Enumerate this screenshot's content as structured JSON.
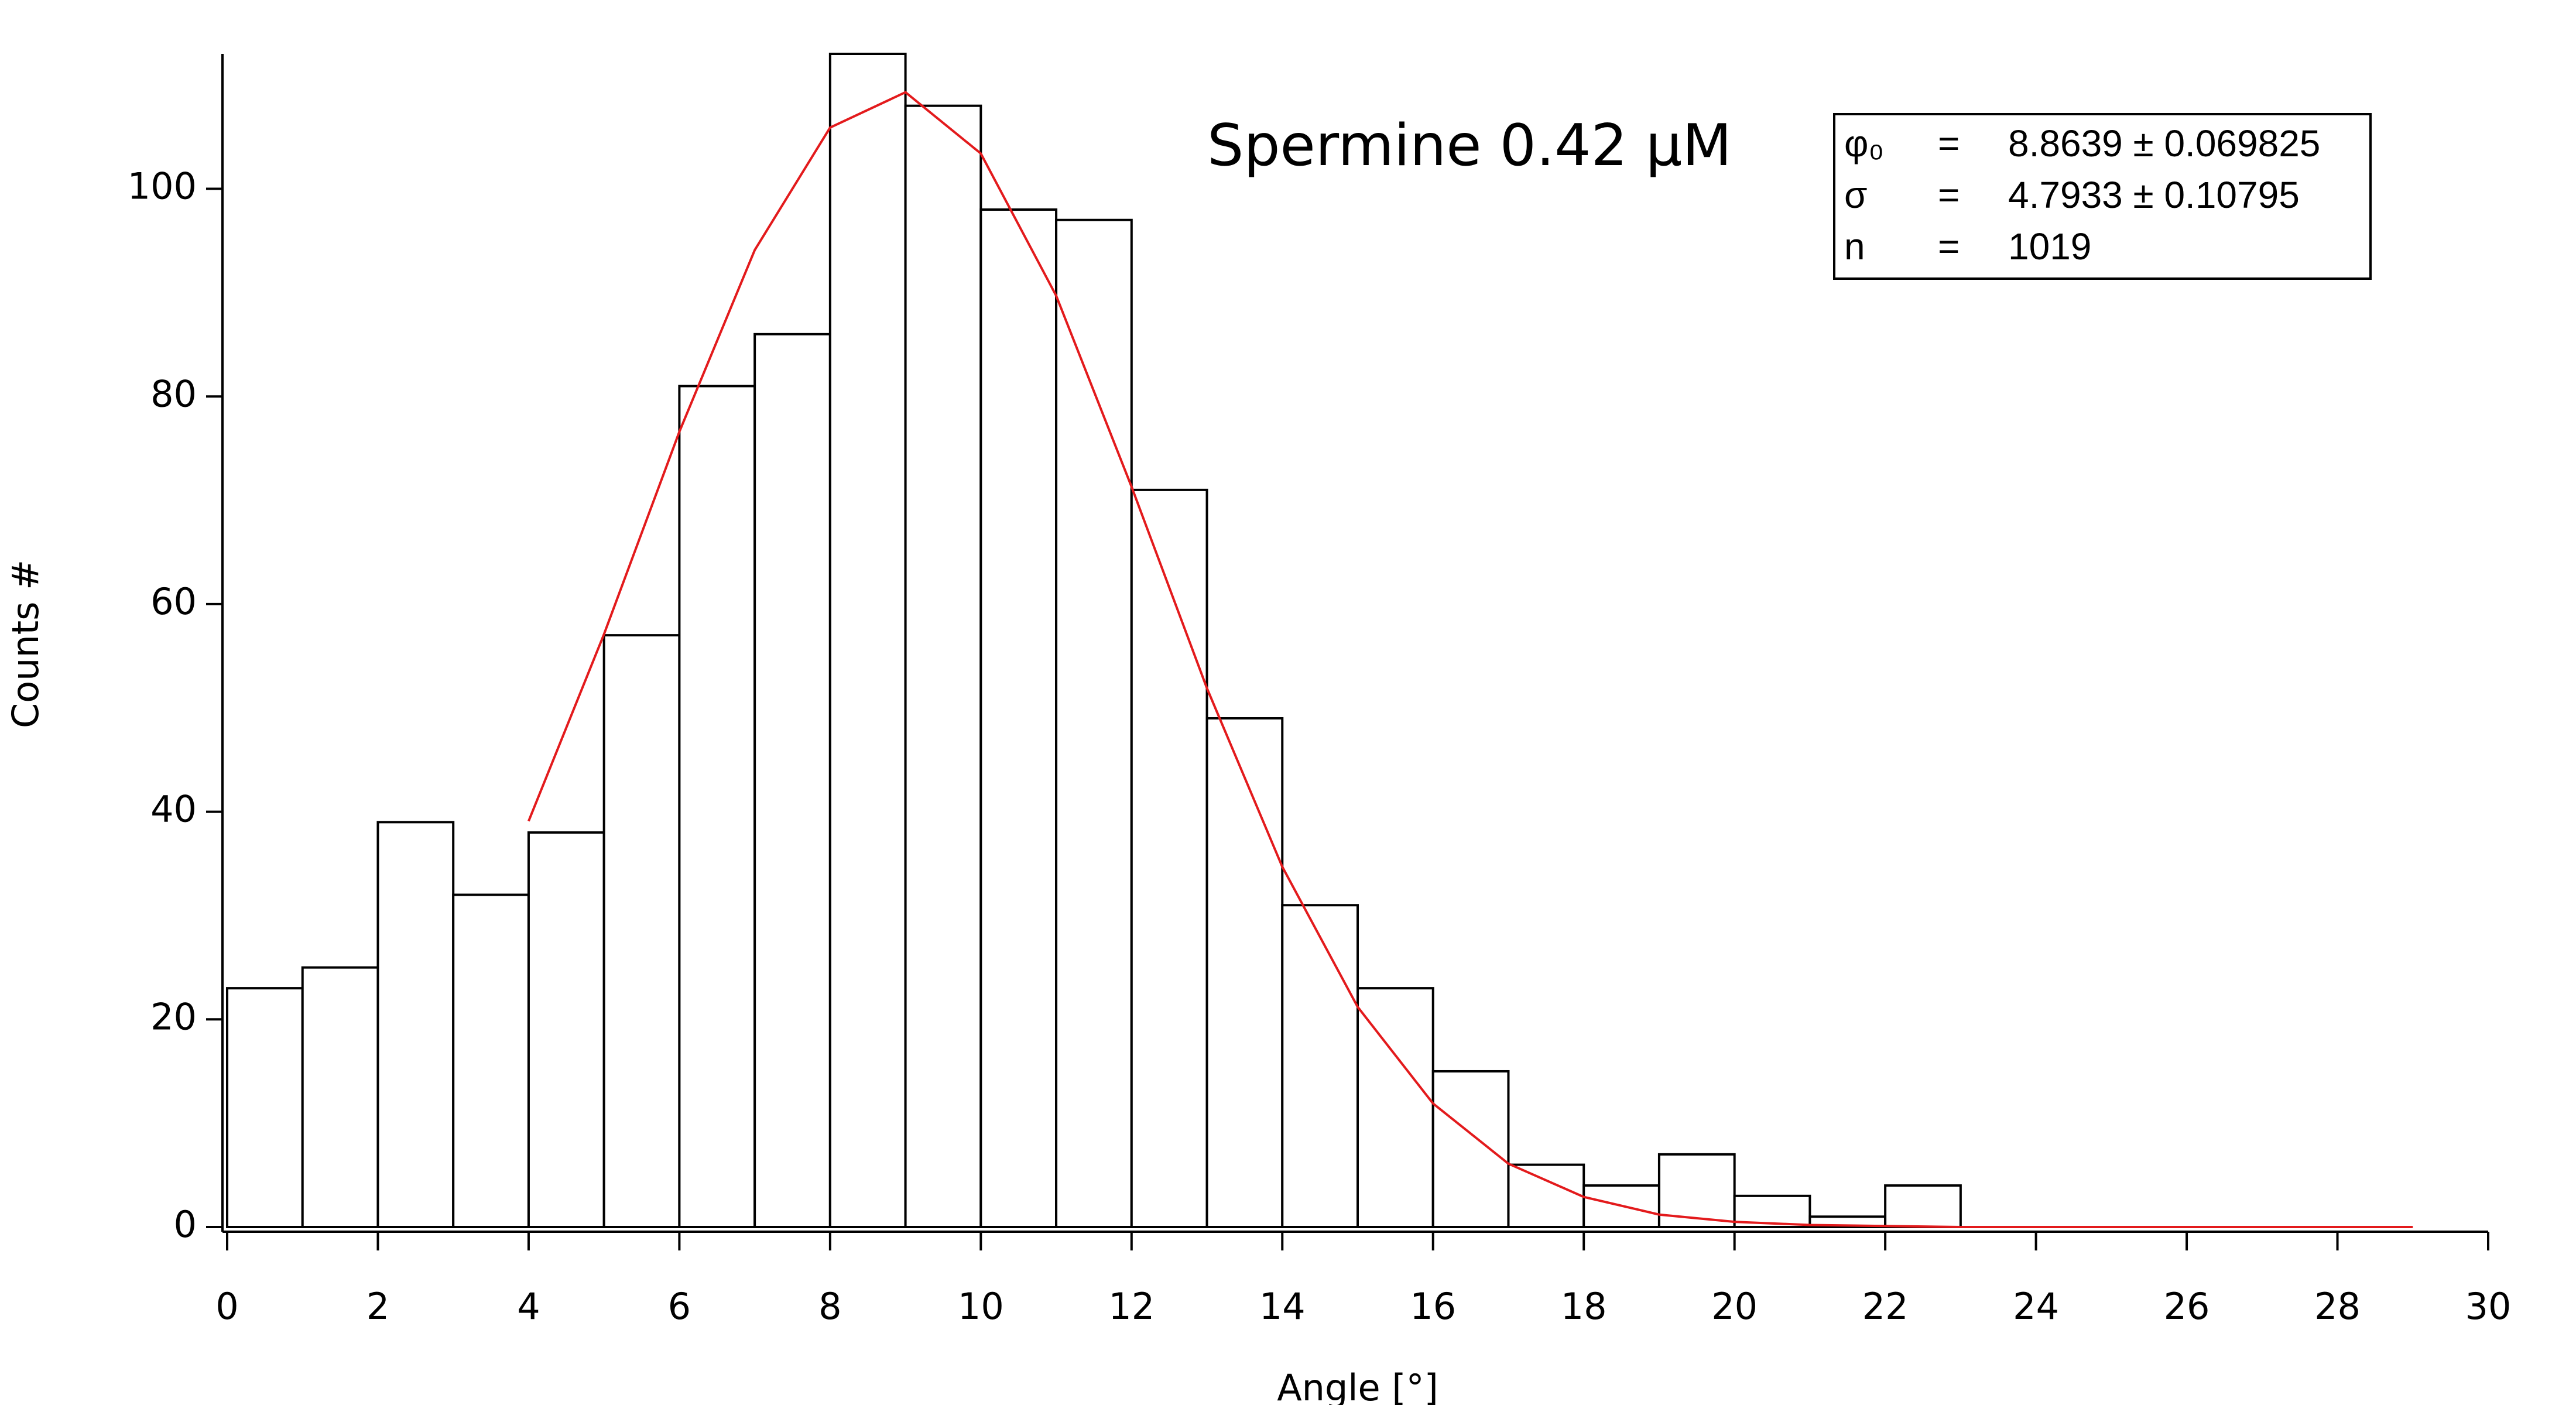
{
  "chart_data": {
    "type": "histogram",
    "title": "Spermine 0.42 µM",
    "x_label": "Angle [°]",
    "y_label": "Counts #",
    "bins": [
      0,
      1,
      2,
      3,
      4,
      5,
      6,
      7,
      8,
      9,
      10,
      11,
      12,
      13,
      14,
      15,
      16,
      17,
      18,
      19,
      20,
      21,
      22,
      23
    ],
    "values": [
      23,
      25,
      39,
      32,
      38,
      57,
      81,
      86,
      113,
      108,
      98,
      97,
      71,
      49,
      31,
      23,
      15,
      6,
      4,
      7,
      3,
      1,
      4
    ],
    "color": "#ffffff",
    "edge_color": "#000000",
    "fit": {
      "type": "line",
      "color": "#e31a1c",
      "x": [
        4,
        5,
        6,
        7,
        8,
        9,
        10,
        11,
        12,
        13,
        14,
        15,
        16,
        17,
        18,
        19,
        20,
        21,
        22,
        23,
        24,
        25,
        26,
        27,
        28,
        29
      ],
      "values": [
        39.1,
        57.1,
        76.6,
        94.1,
        105.9,
        109.3,
        103.4,
        89.7,
        71.3,
        51.9,
        34.7,
        21.2,
        11.9,
        6.1,
        2.9,
        1.2,
        0.5,
        0.2,
        0.1,
        0,
        0,
        0,
        0,
        0,
        0,
        0
      ]
    },
    "annotation": [
      [
        "φ₀",
        "=",
        "8.8639 ± 0.069825"
      ],
      [
        "σ",
        "=",
        "4.7933 ± 0.10795"
      ],
      [
        "n",
        "=",
        "1019"
      ]
    ],
    "xlim": [
      0,
      30
    ],
    "xticks": [
      0,
      2,
      4,
      6,
      8,
      10,
      12,
      14,
      16,
      18,
      20,
      22,
      24,
      26,
      28,
      30
    ],
    "ylim": [
      0,
      113
    ],
    "yticks": [
      0,
      20,
      40,
      60,
      80,
      100
    ]
  }
}
